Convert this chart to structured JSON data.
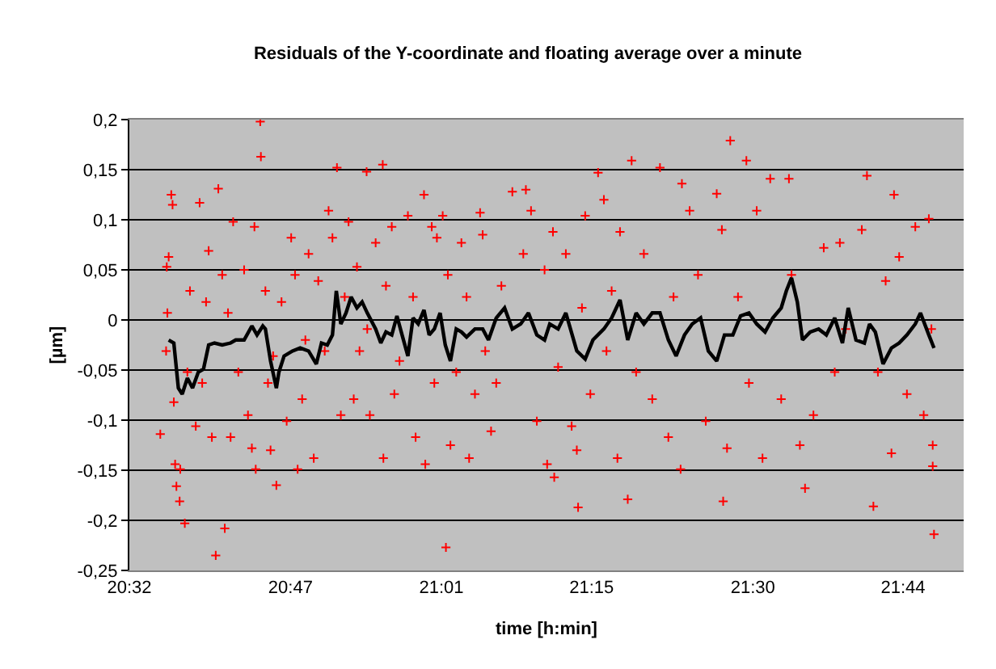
{
  "chart_data": {
    "type": "scatter",
    "title": "Residuals of the Y-coordinate and floating average over a minute",
    "xlabel": "time [h:min]",
    "ylabel": "[µm]",
    "xlim": [
      20.533,
      21.827
    ],
    "xticks": [
      {
        "value": 20.533,
        "label": "20:32"
      },
      {
        "value": 20.783,
        "label": "20:47"
      },
      {
        "value": 21.017,
        "label": "21:01"
      },
      {
        "value": 21.25,
        "label": "21:15"
      },
      {
        "value": 21.5,
        "label": "21:30"
      },
      {
        "value": 21.733,
        "label": "21:44"
      }
    ],
    "ylim": [
      -0.25,
      0.2
    ],
    "yticks": [
      {
        "value": -0.25,
        "label": "-0,25"
      },
      {
        "value": -0.2,
        "label": "-0,2"
      },
      {
        "value": -0.15,
        "label": "-0,15"
      },
      {
        "value": -0.1,
        "label": "-0,1"
      },
      {
        "value": -0.05,
        "label": "-0,05"
      },
      {
        "value": 0,
        "label": "0"
      },
      {
        "value": 0.05,
        "label": "0,05"
      },
      {
        "value": 0.1,
        "label": "0,1"
      },
      {
        "value": 0.15,
        "label": "0,15"
      },
      {
        "value": 0.2,
        "label": "0,2"
      }
    ],
    "grid": "y",
    "series": [
      {
        "color": "#ff0000",
        "marker": "cross",
        "x": [
          20.581,
          20.59,
          20.591,
          20.592,
          20.594,
          20.598,
          20.6,
          20.602,
          20.604,
          20.606,
          20.611,
          20.612,
          20.619,
          20.623,
          20.627,
          20.636,
          20.642,
          20.646,
          20.652,
          20.656,
          20.661,
          20.667,
          20.671,
          20.677,
          20.681,
          20.686,
          20.69,
          20.694,
          20.702,
          20.711,
          20.717,
          20.723,
          20.727,
          20.729,
          20.736,
          20.737,
          20.744,
          20.748,
          20.752,
          20.756,
          20.761,
          20.769,
          20.777,
          20.784,
          20.79,
          20.794,
          20.801,
          20.806,
          20.811,
          20.819,
          20.826,
          20.836,
          20.842,
          20.848,
          20.855,
          20.861,
          20.867,
          20.873,
          20.881,
          20.886,
          20.89,
          20.901,
          20.902,
          20.906,
          20.915,
          20.926,
          20.927,
          20.931,
          20.94,
          20.944,
          20.952,
          20.965,
          20.973,
          20.977,
          20.99,
          20.992,
          21.002,
          21.006,
          21.01,
          21.019,
          21.024,
          21.027,
          21.031,
          21.04,
          21.048,
          21.056,
          21.06,
          21.069,
          21.077,
          21.081,
          21.085,
          21.094,
          21.102,
          21.11,
          21.127,
          21.144,
          21.148,
          21.156,
          21.165,
          21.177,
          21.181,
          21.19,
          21.192,
          21.198,
          21.21,
          21.219,
          21.227,
          21.229,
          21.235,
          21.24,
          21.248,
          21.26,
          21.269,
          21.273,
          21.281,
          21.29,
          21.294,
          21.306,
          21.312,
          21.319,
          21.331,
          21.344,
          21.356,
          21.369,
          21.377,
          21.388,
          21.39,
          21.402,
          21.415,
          21.427,
          21.444,
          21.452,
          21.454,
          21.46,
          21.465,
          21.477,
          21.49,
          21.494,
          21.506,
          21.515,
          21.527,
          21.544,
          21.556,
          21.56,
          21.573,
          21.581,
          21.594,
          21.61,
          21.627,
          21.635,
          21.644,
          21.669,
          21.677,
          21.687,
          21.694,
          21.706,
          21.715,
          21.719,
          21.727,
          21.739,
          21.752,
          21.765,
          21.773,
          21.777,
          21.779,
          21.779,
          21.781
        ],
        "values": [
          -0.114,
          -0.031,
          0.053,
          0.007,
          0.063,
          0.125,
          0.115,
          -0.082,
          -0.144,
          -0.166,
          -0.181,
          -0.149,
          -0.203,
          -0.052,
          0.029,
          -0.106,
          0.117,
          -0.063,
          0.018,
          0.069,
          -0.117,
          -0.235,
          0.131,
          0.045,
          -0.208,
          0.007,
          -0.117,
          0.098,
          -0.052,
          0.05,
          -0.095,
          -0.128,
          0.093,
          -0.149,
          0.198,
          0.163,
          0.029,
          -0.063,
          -0.13,
          -0.036,
          -0.165,
          0.018,
          -0.101,
          0.082,
          0.045,
          -0.149,
          -0.079,
          -0.02,
          0.066,
          -0.138,
          0.039,
          -0.031,
          0.109,
          0.082,
          0.152,
          -0.095,
          0.023,
          0.098,
          -0.079,
          0.053,
          -0.031,
          0.148,
          -0.009,
          -0.095,
          0.077,
          0.155,
          -0.138,
          0.034,
          0.093,
          -0.074,
          -0.041,
          0.104,
          0.023,
          -0.117,
          0.125,
          -0.144,
          0.093,
          -0.063,
          0.082,
          0.104,
          -0.227,
          0.045,
          -0.125,
          -0.052,
          0.077,
          0.023,
          -0.138,
          -0.074,
          0.107,
          0.085,
          -0.031,
          -0.111,
          -0.063,
          0.034,
          0.128,
          0.066,
          0.13,
          0.109,
          -0.101,
          0.05,
          -0.144,
          0.088,
          -0.157,
          -0.047,
          0.066,
          -0.106,
          -0.13,
          -0.187,
          0.012,
          0.104,
          -0.074,
          0.147,
          0.12,
          -0.031,
          0.029,
          -0.138,
          0.088,
          -0.179,
          0.159,
          -0.052,
          0.066,
          -0.079,
          0.152,
          -0.117,
          0.023,
          -0.149,
          0.136,
          0.109,
          0.045,
          -0.101,
          0.126,
          0.09,
          -0.181,
          -0.128,
          0.179,
          0.023,
          0.159,
          -0.063,
          0.109,
          -0.138,
          0.141,
          -0.079,
          0.141,
          0.045,
          -0.125,
          -0.168,
          -0.095,
          0.072,
          -0.052,
          0.077,
          -0.009,
          0.09,
          0.144,
          -0.186,
          -0.052,
          0.039,
          -0.133,
          0.125,
          0.063,
          -0.074,
          0.093,
          -0.095,
          0.101,
          -0.009,
          -0.125,
          -0.146,
          -0.214
        ]
      },
      {
        "type": "line",
        "color": "#000000",
        "marker": "none",
        "line_style": "solid",
        "x": [
          20.594,
          20.602,
          20.609,
          20.615,
          20.623,
          20.631,
          20.64,
          20.648,
          20.656,
          20.665,
          20.677,
          20.69,
          20.698,
          20.711,
          20.723,
          20.731,
          20.74,
          20.744,
          20.752,
          20.761,
          20.765,
          20.773,
          20.786,
          20.798,
          20.811,
          20.823,
          20.831,
          20.84,
          20.848,
          20.854,
          20.861,
          20.869,
          20.877,
          20.886,
          20.894,
          20.902,
          20.915,
          20.923,
          20.931,
          20.94,
          20.948,
          20.956,
          20.965,
          20.973,
          20.981,
          20.99,
          20.998,
          21.006,
          21.015,
          21.023,
          21.031,
          21.04,
          21.048,
          21.056,
          21.069,
          21.081,
          21.09,
          21.102,
          21.115,
          21.127,
          21.14,
          21.152,
          21.165,
          21.177,
          21.185,
          21.198,
          21.21,
          21.227,
          21.24,
          21.252,
          21.269,
          21.281,
          21.294,
          21.306,
          21.319,
          21.331,
          21.344,
          21.356,
          21.369,
          21.381,
          21.394,
          21.406,
          21.419,
          21.431,
          21.444,
          21.456,
          21.469,
          21.481,
          21.494,
          21.506,
          21.519,
          21.531,
          21.544,
          21.552,
          21.56,
          21.569,
          21.577,
          21.589,
          21.602,
          21.614,
          21.627,
          21.639,
          21.648,
          21.66,
          21.673,
          21.681,
          21.69,
          21.702,
          21.715,
          21.727,
          21.739,
          21.752,
          21.76,
          21.773,
          21.781
        ],
        "values": [
          -0.02,
          -0.023,
          -0.068,
          -0.074,
          -0.058,
          -0.068,
          -0.052,
          -0.049,
          -0.025,
          -0.023,
          -0.025,
          -0.023,
          -0.02,
          -0.02,
          -0.006,
          -0.015,
          -0.006,
          -0.009,
          -0.041,
          -0.068,
          -0.052,
          -0.036,
          -0.031,
          -0.028,
          -0.031,
          -0.044,
          -0.023,
          -0.025,
          -0.015,
          0.029,
          -0.004,
          0.007,
          0.023,
          0.012,
          0.018,
          0.007,
          -0.009,
          -0.023,
          -0.012,
          -0.015,
          0.004,
          -0.015,
          -0.036,
          0.002,
          -0.004,
          0.01,
          -0.015,
          -0.009,
          0.007,
          -0.025,
          -0.041,
          -0.009,
          -0.012,
          -0.017,
          -0.009,
          -0.009,
          -0.02,
          0.002,
          0.012,
          -0.009,
          -0.004,
          0.007,
          -0.015,
          -0.02,
          -0.004,
          -0.009,
          0.007,
          -0.031,
          -0.039,
          -0.02,
          -0.009,
          0.002,
          0.02,
          -0.02,
          0.007,
          -0.004,
          0.007,
          0.007,
          -0.02,
          -0.036,
          -0.015,
          -0.004,
          0.002,
          -0.031,
          -0.041,
          -0.015,
          -0.015,
          0.004,
          0.007,
          -0.004,
          -0.012,
          0.002,
          0.012,
          0.029,
          0.042,
          0.018,
          -0.02,
          -0.012,
          -0.009,
          -0.015,
          0.002,
          -0.023,
          0.012,
          -0.02,
          -0.023,
          -0.004,
          -0.012,
          -0.044,
          -0.028,
          -0.023,
          -0.015,
          -0.004,
          0.007,
          -0.015,
          -0.028
        ]
      }
    ]
  }
}
